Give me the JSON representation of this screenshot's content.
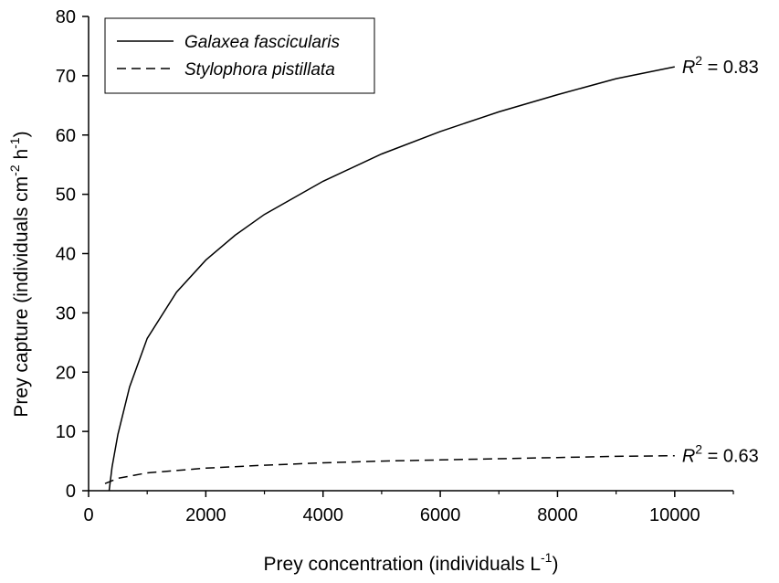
{
  "chart_data": {
    "type": "line",
    "xlabel": {
      "main": "Prey concentration (individuals L",
      "sup": "-1",
      "tail": ")"
    },
    "ylabel": {
      "main": "Prey capture (individuals cm",
      "sup1": "-2",
      "mid": " h",
      "sup2": "-1",
      "tail": ")"
    },
    "xlim": [
      0,
      11000
    ],
    "ylim": [
      0,
      80
    ],
    "x_ticks": [
      "0",
      "2000",
      "4000",
      "6000",
      "8000",
      "10000"
    ],
    "y_ticks": [
      "0",
      "10",
      "20",
      "30",
      "40",
      "50",
      "60",
      "70",
      "80"
    ],
    "grid": false,
    "legend_position": "top-left",
    "series": [
      {
        "name": "Galaxea fascicularis",
        "style": "solid",
        "color": "#000000",
        "x": [
          350,
          400,
          500,
          700,
          1000,
          1500,
          2000,
          2500,
          3000,
          4000,
          5000,
          6000,
          7000,
          8000,
          9000,
          10000
        ],
        "y": [
          0.0,
          4.0,
          9.5,
          17.5,
          25.7,
          33.5,
          38.9,
          43.1,
          46.6,
          52.2,
          56.8,
          60.6,
          63.9,
          66.8,
          69.5,
          71.5
        ],
        "annotation": {
          "label_main": "R",
          "label_sup": "2",
          "label_tail": " = 0.83"
        }
      },
      {
        "name": "Stylophora pistillata",
        "style": "dashed",
        "color": "#000000",
        "x": [
          280,
          500,
          1000,
          2000,
          3000,
          4000,
          5000,
          6000,
          7000,
          8000,
          9000,
          10000
        ],
        "y": [
          1.2,
          2.1,
          3.0,
          3.8,
          4.3,
          4.7,
          5.0,
          5.2,
          5.4,
          5.6,
          5.8,
          5.9
        ],
        "annotation": {
          "label_main": "R",
          "label_sup": "2",
          "label_tail": " = 0.63"
        }
      }
    ]
  }
}
